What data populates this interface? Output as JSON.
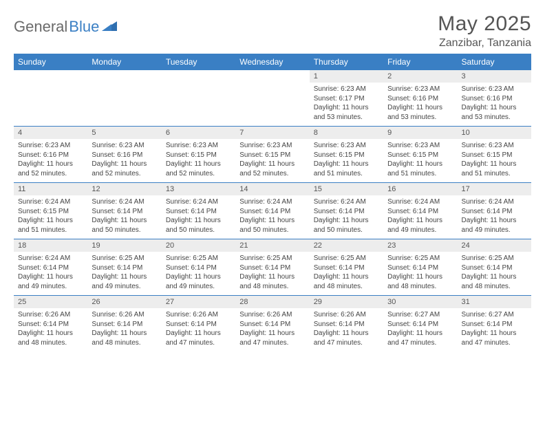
{
  "logo": {
    "part1": "General",
    "part2": "Blue"
  },
  "title": "May 2025",
  "location": "Zanzibar, Tanzania",
  "colors": {
    "header_bg": "#3a7fc4",
    "header_text": "#ffffff",
    "daynum_bg": "#ededed",
    "text": "#444444",
    "rule": "#3a7fc4",
    "logo_gray": "#6a6a6a",
    "logo_blue": "#3a7fc4"
  },
  "day_names": [
    "Sunday",
    "Monday",
    "Tuesday",
    "Wednesday",
    "Thursday",
    "Friday",
    "Saturday"
  ],
  "weeks": [
    [
      null,
      null,
      null,
      null,
      {
        "n": "1",
        "sr": "Sunrise: 6:23 AM",
        "ss": "Sunset: 6:17 PM",
        "d1": "Daylight: 11 hours",
        "d2": "and 53 minutes."
      },
      {
        "n": "2",
        "sr": "Sunrise: 6:23 AM",
        "ss": "Sunset: 6:16 PM",
        "d1": "Daylight: 11 hours",
        "d2": "and 53 minutes."
      },
      {
        "n": "3",
        "sr": "Sunrise: 6:23 AM",
        "ss": "Sunset: 6:16 PM",
        "d1": "Daylight: 11 hours",
        "d2": "and 53 minutes."
      }
    ],
    [
      {
        "n": "4",
        "sr": "Sunrise: 6:23 AM",
        "ss": "Sunset: 6:16 PM",
        "d1": "Daylight: 11 hours",
        "d2": "and 52 minutes."
      },
      {
        "n": "5",
        "sr": "Sunrise: 6:23 AM",
        "ss": "Sunset: 6:16 PM",
        "d1": "Daylight: 11 hours",
        "d2": "and 52 minutes."
      },
      {
        "n": "6",
        "sr": "Sunrise: 6:23 AM",
        "ss": "Sunset: 6:15 PM",
        "d1": "Daylight: 11 hours",
        "d2": "and 52 minutes."
      },
      {
        "n": "7",
        "sr": "Sunrise: 6:23 AM",
        "ss": "Sunset: 6:15 PM",
        "d1": "Daylight: 11 hours",
        "d2": "and 52 minutes."
      },
      {
        "n": "8",
        "sr": "Sunrise: 6:23 AM",
        "ss": "Sunset: 6:15 PM",
        "d1": "Daylight: 11 hours",
        "d2": "and 51 minutes."
      },
      {
        "n": "9",
        "sr": "Sunrise: 6:23 AM",
        "ss": "Sunset: 6:15 PM",
        "d1": "Daylight: 11 hours",
        "d2": "and 51 minutes."
      },
      {
        "n": "10",
        "sr": "Sunrise: 6:23 AM",
        "ss": "Sunset: 6:15 PM",
        "d1": "Daylight: 11 hours",
        "d2": "and 51 minutes."
      }
    ],
    [
      {
        "n": "11",
        "sr": "Sunrise: 6:24 AM",
        "ss": "Sunset: 6:15 PM",
        "d1": "Daylight: 11 hours",
        "d2": "and 51 minutes."
      },
      {
        "n": "12",
        "sr": "Sunrise: 6:24 AM",
        "ss": "Sunset: 6:14 PM",
        "d1": "Daylight: 11 hours",
        "d2": "and 50 minutes."
      },
      {
        "n": "13",
        "sr": "Sunrise: 6:24 AM",
        "ss": "Sunset: 6:14 PM",
        "d1": "Daylight: 11 hours",
        "d2": "and 50 minutes."
      },
      {
        "n": "14",
        "sr": "Sunrise: 6:24 AM",
        "ss": "Sunset: 6:14 PM",
        "d1": "Daylight: 11 hours",
        "d2": "and 50 minutes."
      },
      {
        "n": "15",
        "sr": "Sunrise: 6:24 AM",
        "ss": "Sunset: 6:14 PM",
        "d1": "Daylight: 11 hours",
        "d2": "and 50 minutes."
      },
      {
        "n": "16",
        "sr": "Sunrise: 6:24 AM",
        "ss": "Sunset: 6:14 PM",
        "d1": "Daylight: 11 hours",
        "d2": "and 49 minutes."
      },
      {
        "n": "17",
        "sr": "Sunrise: 6:24 AM",
        "ss": "Sunset: 6:14 PM",
        "d1": "Daylight: 11 hours",
        "d2": "and 49 minutes."
      }
    ],
    [
      {
        "n": "18",
        "sr": "Sunrise: 6:24 AM",
        "ss": "Sunset: 6:14 PM",
        "d1": "Daylight: 11 hours",
        "d2": "and 49 minutes."
      },
      {
        "n": "19",
        "sr": "Sunrise: 6:25 AM",
        "ss": "Sunset: 6:14 PM",
        "d1": "Daylight: 11 hours",
        "d2": "and 49 minutes."
      },
      {
        "n": "20",
        "sr": "Sunrise: 6:25 AM",
        "ss": "Sunset: 6:14 PM",
        "d1": "Daylight: 11 hours",
        "d2": "and 49 minutes."
      },
      {
        "n": "21",
        "sr": "Sunrise: 6:25 AM",
        "ss": "Sunset: 6:14 PM",
        "d1": "Daylight: 11 hours",
        "d2": "and 48 minutes."
      },
      {
        "n": "22",
        "sr": "Sunrise: 6:25 AM",
        "ss": "Sunset: 6:14 PM",
        "d1": "Daylight: 11 hours",
        "d2": "and 48 minutes."
      },
      {
        "n": "23",
        "sr": "Sunrise: 6:25 AM",
        "ss": "Sunset: 6:14 PM",
        "d1": "Daylight: 11 hours",
        "d2": "and 48 minutes."
      },
      {
        "n": "24",
        "sr": "Sunrise: 6:25 AM",
        "ss": "Sunset: 6:14 PM",
        "d1": "Daylight: 11 hours",
        "d2": "and 48 minutes."
      }
    ],
    [
      {
        "n": "25",
        "sr": "Sunrise: 6:26 AM",
        "ss": "Sunset: 6:14 PM",
        "d1": "Daylight: 11 hours",
        "d2": "and 48 minutes."
      },
      {
        "n": "26",
        "sr": "Sunrise: 6:26 AM",
        "ss": "Sunset: 6:14 PM",
        "d1": "Daylight: 11 hours",
        "d2": "and 48 minutes."
      },
      {
        "n": "27",
        "sr": "Sunrise: 6:26 AM",
        "ss": "Sunset: 6:14 PM",
        "d1": "Daylight: 11 hours",
        "d2": "and 47 minutes."
      },
      {
        "n": "28",
        "sr": "Sunrise: 6:26 AM",
        "ss": "Sunset: 6:14 PM",
        "d1": "Daylight: 11 hours",
        "d2": "and 47 minutes."
      },
      {
        "n": "29",
        "sr": "Sunrise: 6:26 AM",
        "ss": "Sunset: 6:14 PM",
        "d1": "Daylight: 11 hours",
        "d2": "and 47 minutes."
      },
      {
        "n": "30",
        "sr": "Sunrise: 6:27 AM",
        "ss": "Sunset: 6:14 PM",
        "d1": "Daylight: 11 hours",
        "d2": "and 47 minutes."
      },
      {
        "n": "31",
        "sr": "Sunrise: 6:27 AM",
        "ss": "Sunset: 6:14 PM",
        "d1": "Daylight: 11 hours",
        "d2": "and 47 minutes."
      }
    ]
  ]
}
